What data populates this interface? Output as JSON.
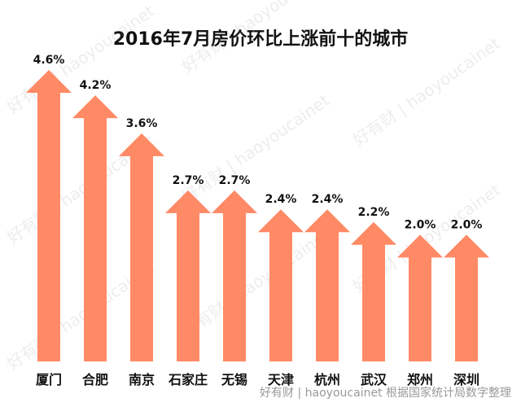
{
  "chart_data": {
    "type": "bar",
    "title": "2016年7月房价环比上涨前十的城市",
    "categories": [
      "厦门",
      "合肥",
      "南京",
      "石家庄",
      "无锡",
      "天津",
      "杭州",
      "武汉",
      "郑州",
      "深圳"
    ],
    "values": [
      4.6,
      4.2,
      3.6,
      2.7,
      2.7,
      2.4,
      2.4,
      2.2,
      2.0,
      2.0
    ],
    "value_labels": [
      "4.6%",
      "4.2%",
      "3.6%",
      "2.7%",
      "2.7%",
      "2.4%",
      "2.4%",
      "2.2%",
      "2.0%",
      "2.0%"
    ],
    "xlabel": "",
    "ylabel": "",
    "ylim": [
      0,
      4.6
    ],
    "grid": false,
    "bar_shape": "up-arrow",
    "bar_color": "#FF8A65"
  },
  "watermark": "好有财 | haoyoucainet",
  "footer": "好有财 | haoyoucainet  根据国家统计局数字整理"
}
